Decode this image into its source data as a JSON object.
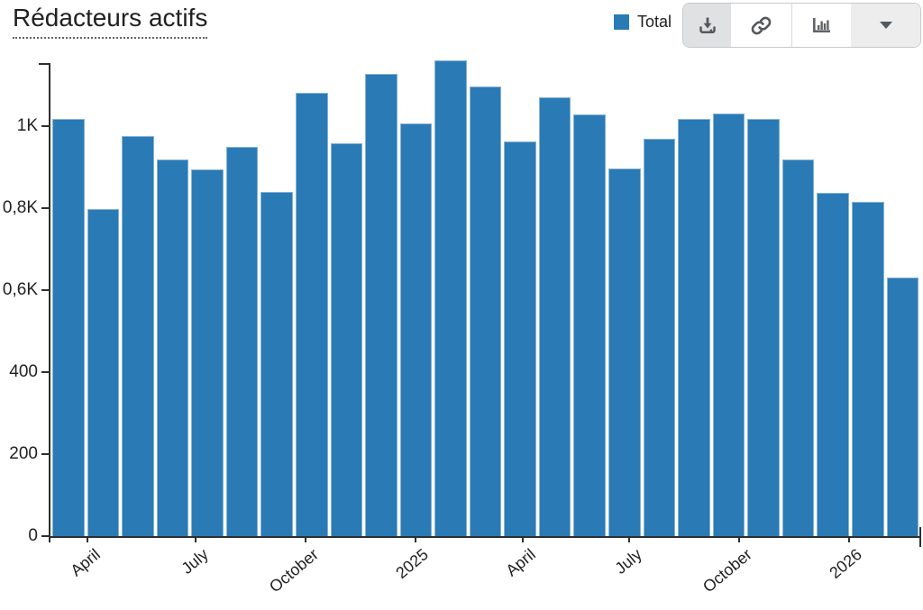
{
  "header": {
    "title": "Rédacteurs actifs",
    "legend": {
      "label": "Total",
      "color": "#2a7ab5"
    },
    "toolbar": {
      "buttons": [
        {
          "id": "download",
          "icon": "download-icon",
          "active": true
        },
        {
          "id": "permalink",
          "icon": "link-icon",
          "active": false
        },
        {
          "id": "chart-type",
          "icon": "bar-chart-icon",
          "active": false
        },
        {
          "id": "more-options",
          "icon": "caret-down-icon",
          "active": false
        }
      ]
    }
  },
  "chart_data": {
    "type": "bar",
    "title": "Rédacteurs actifs",
    "categories": [
      "2024-03",
      "2024-04",
      "2024-05",
      "2024-06",
      "2024-07",
      "2024-08",
      "2024-09",
      "2024-10",
      "2024-11",
      "2024-12",
      "2025-01",
      "2025-02",
      "2025-03",
      "2025-04",
      "2025-05",
      "2025-06",
      "2025-07",
      "2025-08",
      "2025-09",
      "2025-10",
      "2025-11",
      "2025-12",
      "2026-01",
      "2026-02",
      "2026-03"
    ],
    "series": [
      {
        "name": "Total",
        "color": "#2a7ab5",
        "values": [
          1018,
          797,
          976,
          919,
          895,
          950,
          840,
          1081,
          959,
          1128,
          1007,
          1160,
          1098,
          963,
          1070,
          1029,
          896,
          970,
          1018,
          1031,
          1017,
          918,
          837,
          816,
          630
        ]
      }
    ],
    "ylim": [
      0,
      1154
    ],
    "axis_max": 1154,
    "grid": false,
    "legend_position": "top-right",
    "yticks": [
      {
        "value": 0,
        "label": "0"
      },
      {
        "value": 200,
        "label": "200"
      },
      {
        "value": 400,
        "label": "400"
      },
      {
        "value": 600,
        "label": "0,6K"
      },
      {
        "value": 800,
        "label": "0,8K"
      },
      {
        "value": 1000,
        "label": "1K"
      }
    ],
    "xticks": [
      {
        "label": "April",
        "position_pct": 4.1
      },
      {
        "label": "July",
        "position_pct": 16.6
      },
      {
        "label": "October",
        "position_pct": 29.2
      },
      {
        "label": "2025",
        "position_pct": 41.8
      },
      {
        "label": "April",
        "position_pct": 54.1
      },
      {
        "label": "July",
        "position_pct": 66.4
      },
      {
        "label": "October",
        "position_pct": 79.0
      },
      {
        "label": "2026",
        "position_pct": 91.6
      }
    ]
  }
}
